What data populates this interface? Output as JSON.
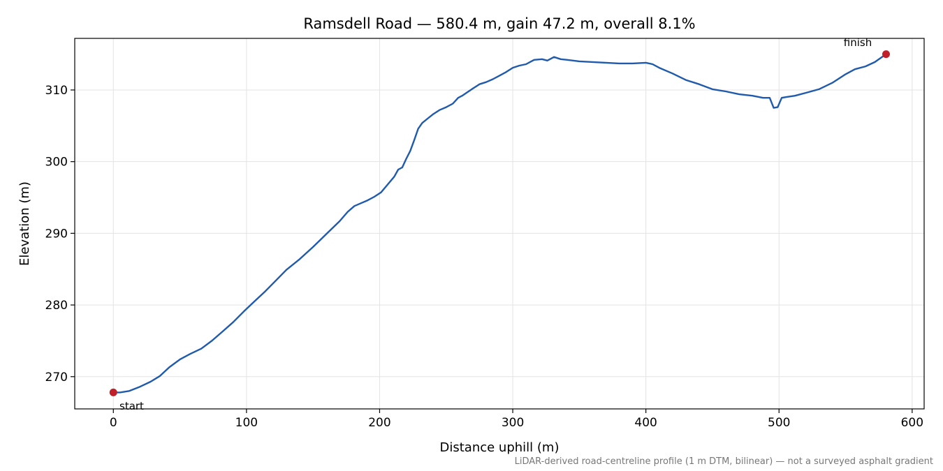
{
  "chart_data": {
    "type": "line",
    "title": "Ramsdell Road — 580.4 m, gain 47.2 m, overall 8.1%",
    "xlabel": "Distance uphill (m)",
    "ylabel": "Elevation (m)",
    "xlim": [
      -29,
      609
    ],
    "ylim": [
      265.5,
      317.2
    ],
    "xticks": [
      0,
      100,
      200,
      300,
      400,
      500,
      600
    ],
    "yticks": [
      270,
      280,
      290,
      300,
      310
    ],
    "grid": true,
    "line_color": "#1f5aad",
    "marker_color": "#c0202a",
    "footnote": "LiDAR-derived road-centreline profile (1 m DTM, bilinear) — not a surveyed asphalt gradient",
    "series": [
      {
        "x": [
          0,
          5,
          12,
          20,
          28,
          35,
          42,
          50,
          58,
          66,
          74,
          82,
          90,
          98,
          106,
          114,
          122,
          130,
          140,
          150,
          160,
          170,
          176,
          181,
          186,
          191,
          196,
          201,
          206,
          211,
          214,
          217,
          220,
          223,
          226,
          229,
          232,
          236,
          240,
          245,
          250,
          255,
          259,
          262,
          266,
          270,
          275,
          280,
          285,
          290,
          295,
          300,
          305,
          310,
          316,
          322,
          326,
          331,
          336,
          341,
          350,
          360,
          370,
          380,
          390,
          400,
          405,
          410,
          420,
          430,
          440,
          450,
          460,
          470,
          480,
          488,
          493,
          496,
          499,
          502,
          505,
          512,
          520,
          530,
          540,
          550,
          557,
          565,
          572,
          580.4
        ],
        "y": [
          267.8,
          267.8,
          268.0,
          268.6,
          269.3,
          270.1,
          271.3,
          272.4,
          273.2,
          273.9,
          275.0,
          276.3,
          277.6,
          279.1,
          280.5,
          281.9,
          283.4,
          284.9,
          286.4,
          288.1,
          289.9,
          291.7,
          293.0,
          293.8,
          294.2,
          294.6,
          295.1,
          295.7,
          296.8,
          297.9,
          298.9,
          299.2,
          300.4,
          301.5,
          303.0,
          304.6,
          305.4,
          306.0,
          306.6,
          307.2,
          307.6,
          308.1,
          308.9,
          309.2,
          309.7,
          310.2,
          310.8,
          311.1,
          311.5,
          312.0,
          312.5,
          313.1,
          313.4,
          313.6,
          314.2,
          314.3,
          314.1,
          314.6,
          314.3,
          314.2,
          314.0,
          313.9,
          313.8,
          313.7,
          313.7,
          313.8,
          313.6,
          313.1,
          312.3,
          311.4,
          310.8,
          310.1,
          309.8,
          309.4,
          309.2,
          308.9,
          308.9,
          307.5,
          307.6,
          308.9,
          309.0,
          309.2,
          309.6,
          310.1,
          311.0,
          312.2,
          312.9,
          313.3,
          313.9,
          315.0
        ]
      }
    ],
    "annotations": [
      {
        "text": "start",
        "x": 0,
        "y": 267.8
      },
      {
        "text": "finish",
        "x": 580.4,
        "y": 315.0
      }
    ]
  }
}
